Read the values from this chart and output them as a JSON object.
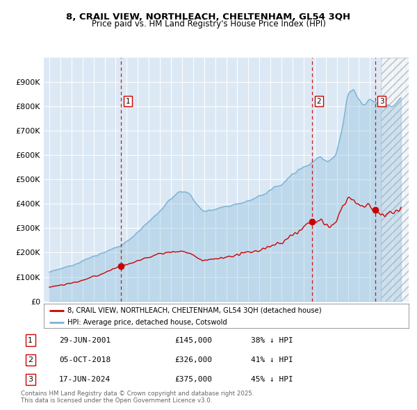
{
  "title_line1": "8, CRAIL VIEW, NORTHLEACH, CHELTENHAM, GL54 3QH",
  "title_line2": "Price paid vs. HM Land Registry's House Price Index (HPI)",
  "hpi_color": "#7ab3d4",
  "hpi_fill_color": "#c8dff0",
  "price_color": "#cc0000",
  "vline_color": "#cc0000",
  "background_color": "#dce9f5",
  "hatch_color": "#c0c0c0",
  "transactions": [
    {
      "num": 1,
      "date_label": "29-JUN-2001",
      "date_x": 2001.49,
      "price": 145000,
      "pct": "38% ↓ HPI"
    },
    {
      "num": 2,
      "date_label": "05-OCT-2018",
      "date_x": 2018.76,
      "price": 326000,
      "pct": "41% ↓ HPI"
    },
    {
      "num": 3,
      "date_label": "17-JUN-2024",
      "date_x": 2024.46,
      "price": 375000,
      "pct": "45% ↓ HPI"
    }
  ],
  "legend_entry1": "8, CRAIL VIEW, NORTHLEACH, CHELTENHAM, GL54 3QH (detached house)",
  "legend_entry2": "HPI: Average price, detached house, Cotswold",
  "footnote": "Contains HM Land Registry data © Crown copyright and database right 2025.\nThis data is licensed under the Open Government Licence v3.0.",
  "xlim": [
    1994.5,
    2027.5
  ],
  "ylim": [
    0,
    1000000
  ],
  "yticks": [
    0,
    100000,
    200000,
    300000,
    400000,
    500000,
    600000,
    700000,
    800000,
    900000
  ],
  "ytick_labels": [
    "£0",
    "£100K",
    "£200K",
    "£300K",
    "£400K",
    "£500K",
    "£600K",
    "£700K",
    "£800K",
    "£900K"
  ],
  "hatch_start": 2025.0
}
